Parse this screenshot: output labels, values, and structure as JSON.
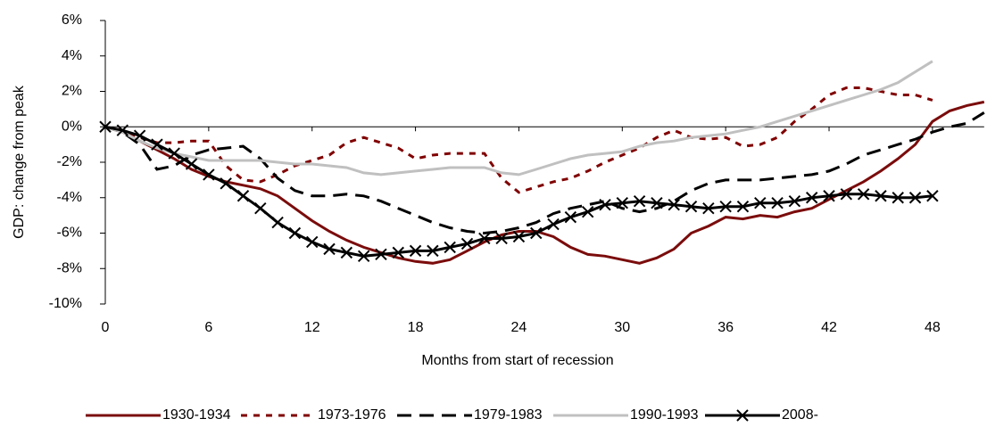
{
  "chart_data": {
    "type": "line",
    "x_label": "Months from start of recession",
    "y_label": "GDP: change from peak",
    "x": [
      0,
      1,
      2,
      3,
      4,
      5,
      6,
      7,
      8,
      9,
      10,
      11,
      12,
      13,
      14,
      15,
      16,
      17,
      18,
      19,
      20,
      21,
      22,
      23,
      24,
      25,
      26,
      27,
      28,
      29,
      30,
      31,
      32,
      33,
      34,
      35,
      36,
      37,
      38,
      39,
      40,
      41,
      42,
      43,
      44,
      45,
      46,
      47,
      48,
      49,
      50,
      51
    ],
    "xlim": [
      0,
      51
    ],
    "xticks": [
      0,
      6,
      12,
      18,
      24,
      30,
      36,
      42,
      48
    ],
    "ylim": [
      -10,
      6
    ],
    "yticks": [
      {
        "value": -10,
        "label": "-10%"
      },
      {
        "value": -8,
        "label": "-8%"
      },
      {
        "value": -6,
        "label": "-6%"
      },
      {
        "value": -4,
        "label": "-4%"
      },
      {
        "value": -2,
        "label": "-2%"
      },
      {
        "value": 0,
        "label": "0%"
      },
      {
        "value": 2,
        "label": "2%"
      },
      {
        "value": 4,
        "label": "4%"
      },
      {
        "value": 6,
        "label": "6%"
      }
    ],
    "legend": "bottom",
    "series": [
      {
        "name": "1930-1934",
        "color": "#7b0c0c",
        "style": "solid",
        "values": [
          0,
          -0.3,
          -0.8,
          -1.3,
          -1.8,
          -2.4,
          -2.8,
          -3.1,
          -3.3,
          -3.5,
          -3.9,
          -4.6,
          -5.3,
          -5.9,
          -6.4,
          -6.8,
          -7.1,
          -7.4,
          -7.6,
          -7.7,
          -7.5,
          -7.0,
          -6.5,
          -6.1,
          -5.9,
          -5.9,
          -6.2,
          -6.8,
          -7.2,
          -7.3,
          -7.5,
          -7.7,
          -7.4,
          -6.9,
          -6.0,
          -5.6,
          -5.1,
          -5.2,
          -5.0,
          -5.1,
          -4.8,
          -4.6,
          -4.1,
          -3.6,
          -3.1,
          -2.5,
          -1.8,
          -1.0,
          0.3,
          0.9,
          1.2,
          1.4
        ]
      },
      {
        "name": "1973-1976",
        "color": "#800000",
        "style": "dotted",
        "values": [
          0,
          -0.2,
          -0.6,
          -0.9,
          -0.9,
          -0.8,
          -0.8,
          -2.2,
          -3.0,
          -3.1,
          -2.7,
          -2.2,
          -1.9,
          -1.6,
          -0.9,
          -0.6,
          -0.9,
          -1.2,
          -1.8,
          -1.6,
          -1.5,
          -1.5,
          -1.5,
          -2.9,
          -3.7,
          -3.4,
          -3.1,
          -2.9,
          -2.5,
          -2.0,
          -1.6,
          -1.2,
          -0.6,
          -0.2,
          -0.6,
          -0.7,
          -0.6,
          -1.1,
          -1.0,
          -0.6,
          0.3,
          1.0,
          1.8,
          2.2,
          2.2,
          2.0,
          1.8,
          1.8,
          1.5,
          null,
          null,
          null
        ]
      },
      {
        "name": "1979-1983",
        "color": "#000000",
        "style": "dashed",
        "values": [
          0,
          -0.3,
          -1.0,
          -2.4,
          -2.2,
          -1.6,
          -1.3,
          -1.2,
          -1.1,
          -1.8,
          -2.9,
          -3.6,
          -3.9,
          -3.9,
          -3.8,
          -3.9,
          -4.2,
          -4.6,
          -5.0,
          -5.4,
          -5.7,
          -5.9,
          -6.0,
          -5.9,
          -5.7,
          -5.4,
          -4.9,
          -4.6,
          -4.4,
          -4.2,
          -4.6,
          -4.8,
          -4.6,
          -4.2,
          -3.6,
          -3.2,
          -3.0,
          -3.0,
          -3.0,
          -2.9,
          -2.8,
          -2.7,
          -2.5,
          -2.1,
          -1.6,
          -1.3,
          -1.0,
          -0.7,
          -0.3,
          0.0,
          0.2,
          0.8
        ]
      },
      {
        "name": "1990-1993",
        "color": "#c0c0c0",
        "style": "solid",
        "values": [
          0,
          -0.3,
          -0.8,
          -1.2,
          -1.5,
          -1.7,
          -1.9,
          -1.9,
          -1.9,
          -1.9,
          -2.0,
          -2.1,
          -2.1,
          -2.2,
          -2.3,
          -2.6,
          -2.7,
          -2.6,
          -2.5,
          -2.4,
          -2.3,
          -2.3,
          -2.3,
          -2.6,
          -2.7,
          -2.4,
          -2.1,
          -1.8,
          -1.6,
          -1.5,
          -1.4,
          -1.1,
          -0.9,
          -0.8,
          -0.6,
          -0.5,
          -0.4,
          -0.2,
          0.0,
          0.3,
          0.6,
          0.9,
          1.2,
          1.5,
          1.8,
          2.1,
          2.5,
          3.1,
          3.7,
          null,
          null,
          null
        ]
      },
      {
        "name": "2008-",
        "color": "#000000",
        "style": "solid",
        "marker": "x",
        "values": [
          0,
          -0.2,
          -0.5,
          -1.0,
          -1.5,
          -2.1,
          -2.7,
          -3.2,
          -3.9,
          -4.6,
          -5.4,
          -6.0,
          -6.5,
          -6.9,
          -7.1,
          -7.3,
          -7.2,
          -7.1,
          -7.0,
          -7.0,
          -6.8,
          -6.6,
          -6.3,
          -6.3,
          -6.2,
          -6.0,
          -5.5,
          -5.1,
          -4.8,
          -4.4,
          -4.3,
          -4.2,
          -4.3,
          -4.4,
          -4.5,
          -4.6,
          -4.5,
          -4.5,
          -4.3,
          -4.3,
          -4.2,
          -4.0,
          -3.9,
          -3.8,
          -3.8,
          -3.9,
          -4.0,
          -4.0,
          -3.9,
          null,
          null,
          null
        ]
      }
    ]
  }
}
